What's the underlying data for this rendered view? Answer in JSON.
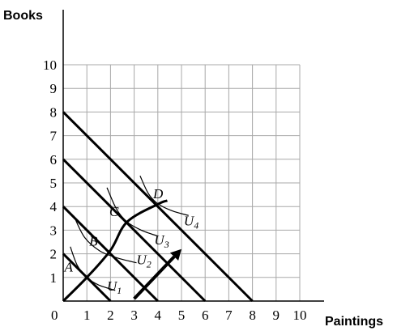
{
  "chart_data": {
    "type": "line",
    "xlabel": "Paintings",
    "ylabel": "Books",
    "origin_label": "0",
    "xlim": [
      0,
      10
    ],
    "ylim": [
      0,
      10
    ],
    "grid": true,
    "x_ticks": [
      "1",
      "2",
      "3",
      "4",
      "5",
      "6",
      "7",
      "8",
      "9",
      "10"
    ],
    "y_ticks": [
      "1",
      "2",
      "3",
      "4",
      "5",
      "6",
      "7",
      "8",
      "9",
      "10"
    ],
    "budget_lines": [
      {
        "x": [
          0,
          2
        ],
        "y": [
          2,
          0
        ]
      },
      {
        "x": [
          0,
          4
        ],
        "y": [
          4,
          0
        ]
      },
      {
        "x": [
          0,
          6
        ],
        "y": [
          6,
          0
        ]
      },
      {
        "x": [
          0,
          8
        ],
        "y": [
          8,
          0
        ]
      }
    ],
    "expansion_path": {
      "x": [
        0,
        1,
        2,
        2.7,
        4,
        4.4
      ],
      "y": [
        0,
        1,
        2.15,
        3.35,
        4.1,
        4.25
      ]
    },
    "indifference_curves": [
      {
        "name": "U1",
        "x": [
          0.3,
          0.6,
          1,
          1.5,
          2.2
        ],
        "y": [
          2.3,
          1.5,
          1,
          0.68,
          0.45
        ]
      },
      {
        "name": "U2",
        "x": [
          0.45,
          0.9,
          1.55,
          2.3,
          3.1
        ],
        "y": [
          3.6,
          2.7,
          2.12,
          1.82,
          1.62
        ]
      },
      {
        "name": "U3",
        "x": [
          1.85,
          2.25,
          2.7,
          3.3,
          4.0
        ],
        "y": [
          4.8,
          3.9,
          3.35,
          3.0,
          2.75
        ]
      },
      {
        "name": "U4",
        "x": [
          3.25,
          3.6,
          4.0,
          4.6,
          5.3
        ],
        "y": [
          5.3,
          4.55,
          4.12,
          3.82,
          3.62
        ]
      }
    ],
    "points": [
      {
        "label": "A",
        "x": 1,
        "y": 1
      },
      {
        "label": "B",
        "x": 2,
        "y": 2.15
      },
      {
        "label": "C",
        "x": 2.7,
        "y": 3.35
      },
      {
        "label": "D",
        "x": 4,
        "y": 4.1
      }
    ],
    "arrow": {
      "from": [
        3,
        0.1
      ],
      "to": [
        5,
        2.2
      ]
    }
  }
}
